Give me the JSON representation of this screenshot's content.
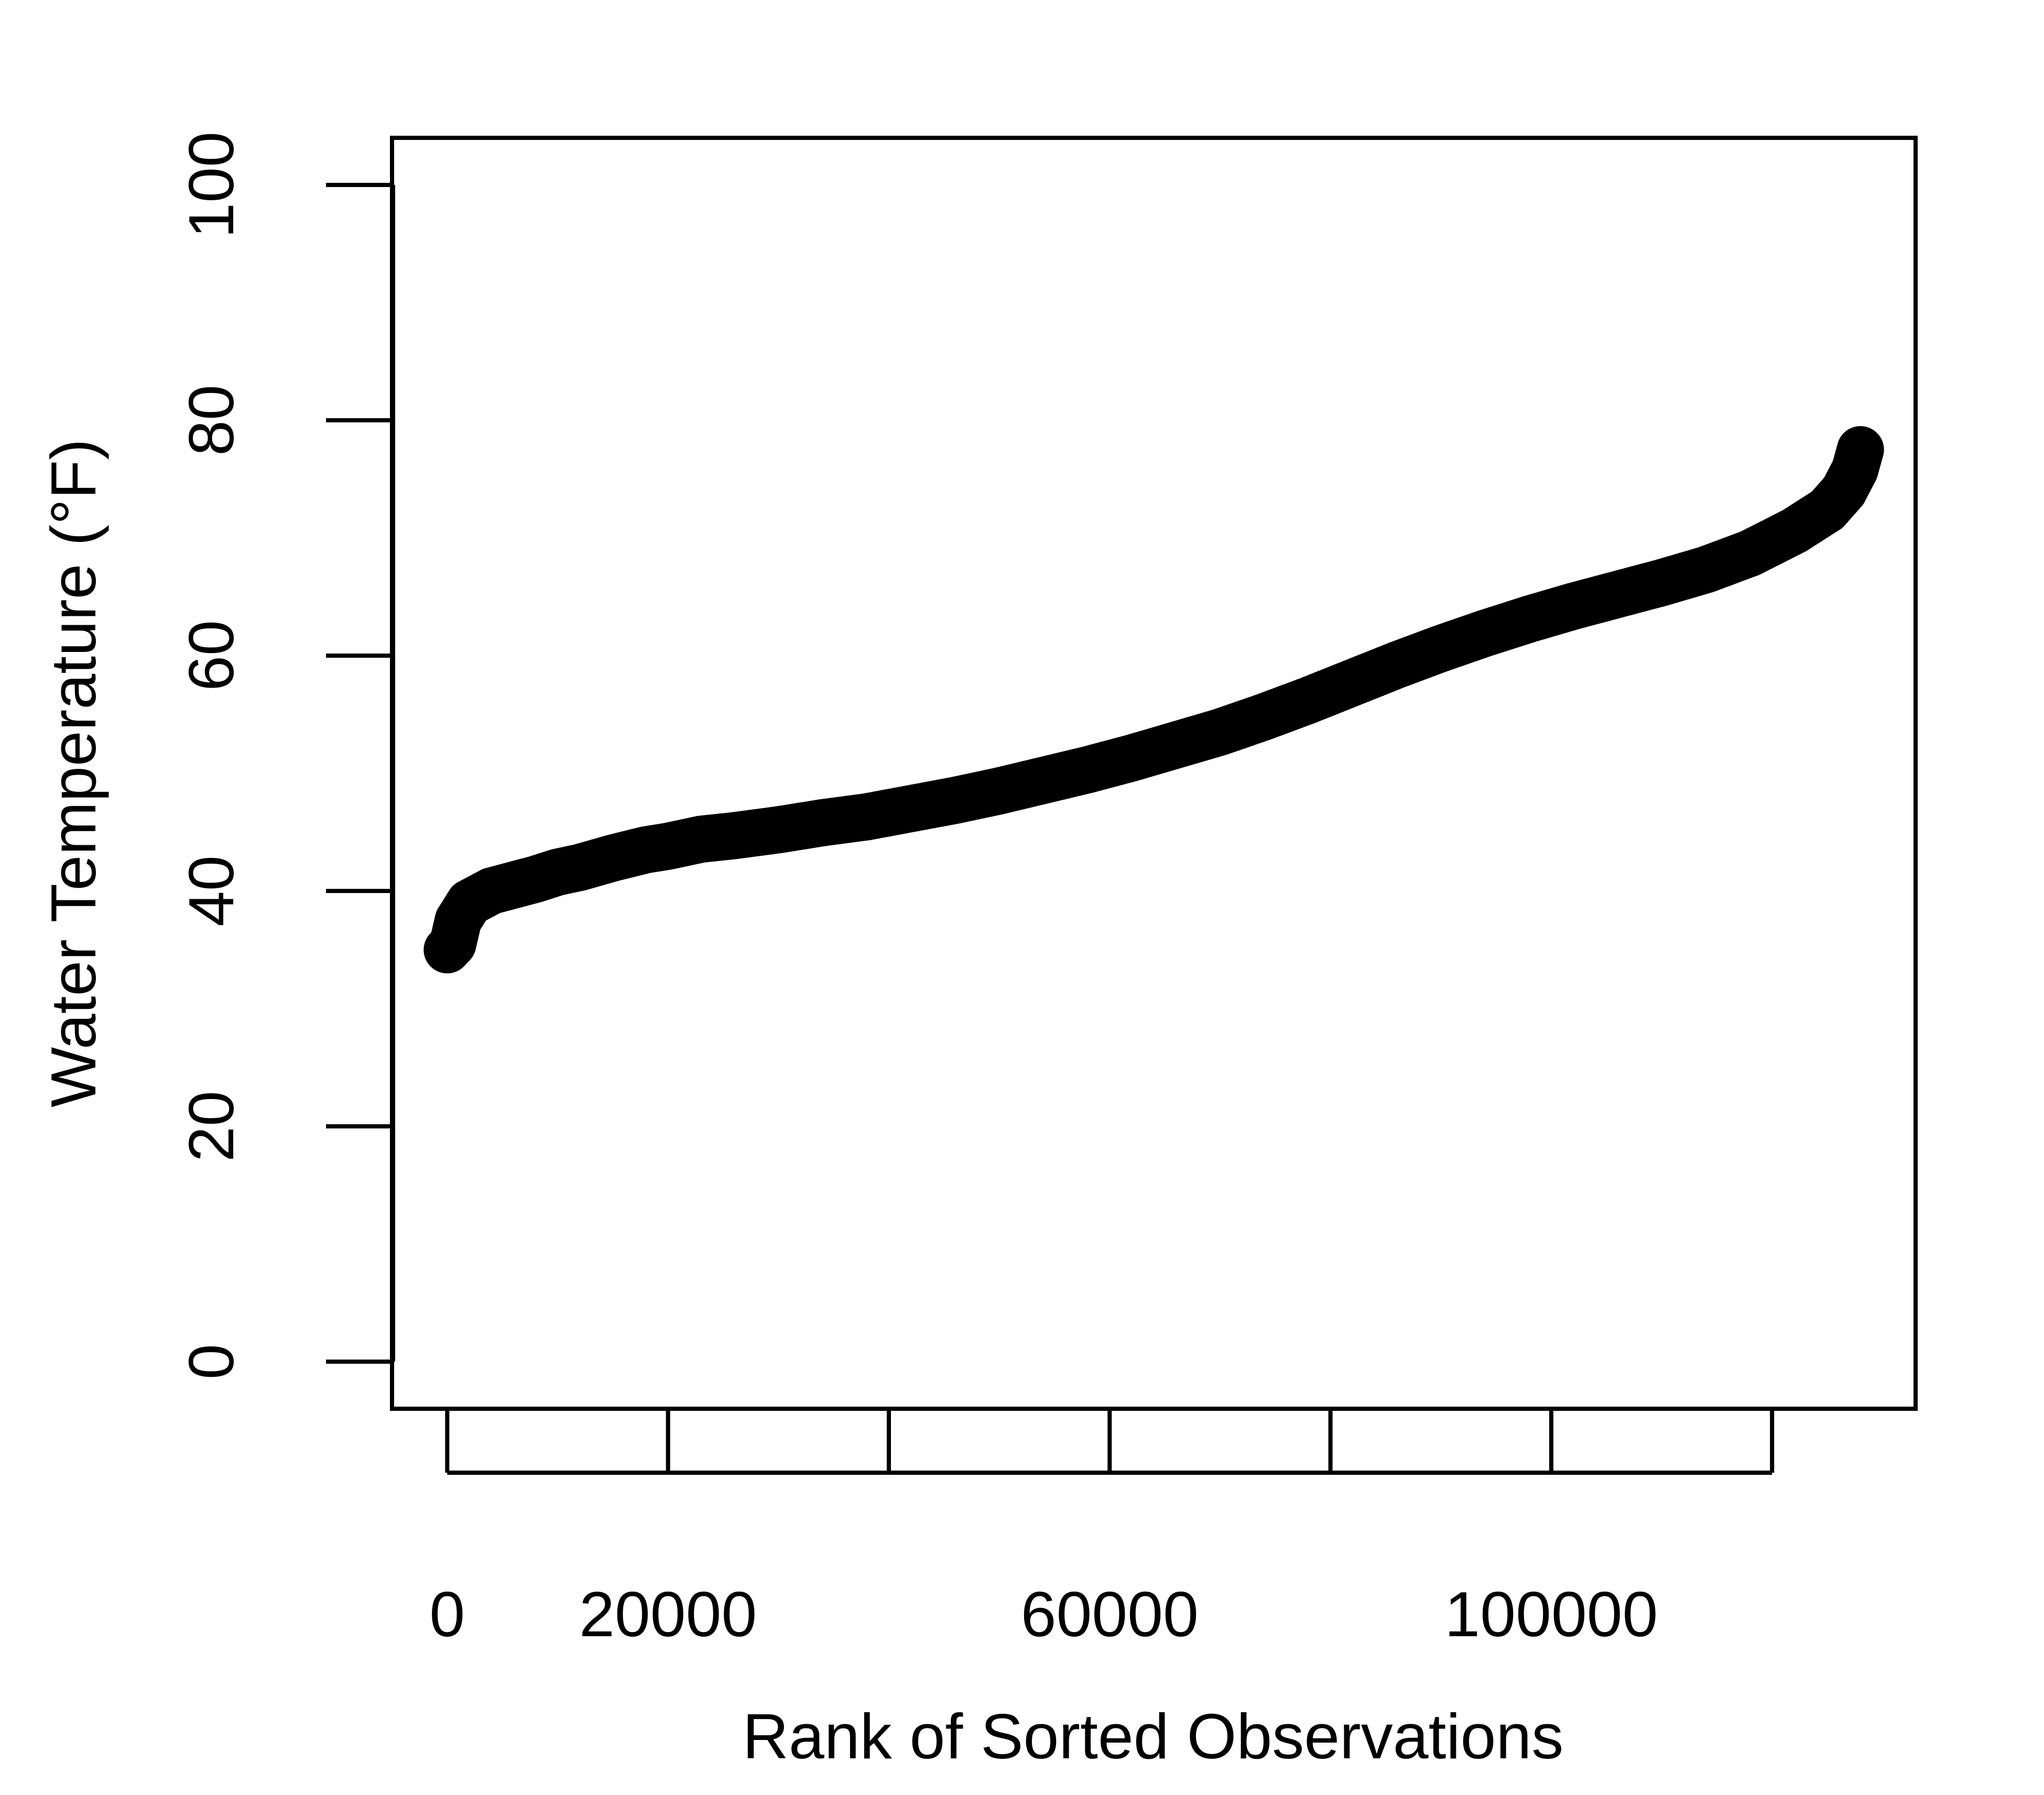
{
  "chart_data": {
    "type": "scatter",
    "title": "",
    "xlabel": "Rank of Sorted Observations",
    "ylabel": "Water Temperature (°F)",
    "xlim": [
      -5000,
      133000
    ],
    "ylim": [
      -4,
      104
    ],
    "xticks": [
      0,
      20000,
      40000,
      60000,
      80000,
      100000,
      120000
    ],
    "xtick_labels": [
      "0",
      "20000",
      "",
      "60000",
      "",
      "100000",
      ""
    ],
    "yticks": [
      0,
      20,
      40,
      60,
      80,
      100
    ],
    "ytick_labels": [
      "0",
      "20",
      "40",
      "60",
      "80",
      "100"
    ],
    "grid": false,
    "legend": "none",
    "point_color": "#000000",
    "series": [
      {
        "values_x": [
          0,
          500,
          1000,
          2000,
          3000,
          4000,
          6000,
          8000,
          10000,
          12000,
          15000,
          18000,
          20000,
          23000,
          26000,
          30000,
          34000,
          38000,
          42000,
          46000,
          50000,
          54000,
          58000,
          62000,
          66000,
          70000,
          74000,
          78000,
          82000,
          86000,
          90000,
          94000,
          98000,
          102000,
          106000,
          110000,
          114000,
          118000,
          122000,
          125000,
          126500,
          127500,
          128000
        ],
        "values_y": [
          35,
          35.5,
          37.5,
          39,
          39.5,
          40,
          40.5,
          41,
          41.6,
          42,
          42.8,
          43.5,
          43.8,
          44.4,
          44.7,
          45.2,
          45.8,
          46.3,
          47,
          47.7,
          48.5,
          49.4,
          50.3,
          51.3,
          52.4,
          53.5,
          54.8,
          56.2,
          57.7,
          59.2,
          60.6,
          61.9,
          63.1,
          64.2,
          65.2,
          66.2,
          67.3,
          68.7,
          70.6,
          72.4,
          74,
          75.8,
          77.5
        ]
      }
    ]
  }
}
